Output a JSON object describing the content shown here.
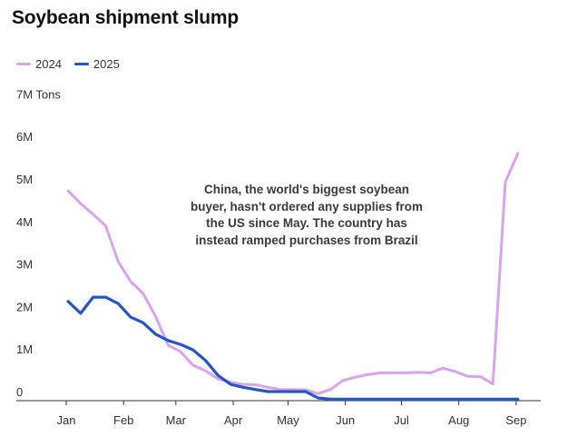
{
  "chart_data": {
    "type": "line",
    "title": "Soybean shipment slump",
    "ylabel": "Tons",
    "xlabel": "",
    "ylim": [
      0,
      7000000
    ],
    "y_ticks": [
      {
        "value": 0,
        "label": "0"
      },
      {
        "value": 1000000,
        "label": "1M"
      },
      {
        "value": 2000000,
        "label": "2M"
      },
      {
        "value": 3000000,
        "label": "3M"
      },
      {
        "value": 4000000,
        "label": "4M"
      },
      {
        "value": 5000000,
        "label": "5M"
      },
      {
        "value": 6000000,
        "label": "6M"
      },
      {
        "value": 7000000,
        "label": "7M Tons"
      }
    ],
    "x_ticks": [
      {
        "week": 0,
        "label": "Jan"
      },
      {
        "week": 4.5,
        "label": "Feb"
      },
      {
        "week": 8.6,
        "label": "Mar"
      },
      {
        "week": 13.1,
        "label": "Apr"
      },
      {
        "week": 17.4,
        "label": "May"
      },
      {
        "week": 21.9,
        "label": "Jun"
      },
      {
        "week": 26.3,
        "label": "Jul"
      },
      {
        "week": 30.8,
        "label": "Aug"
      },
      {
        "week": 35.3,
        "label": "Sep"
      }
    ],
    "xlim": [
      -2,
      37.5
    ],
    "grid": false,
    "legend_position": "top-left",
    "series": [
      {
        "name": "2024",
        "color": "#d9a3f0",
        "x_unit": "week",
        "values": [
          4.72,
          4.42,
          4.17,
          3.9,
          3.06,
          2.59,
          2.31,
          1.77,
          1.09,
          0.94,
          0.62,
          0.49,
          0.3,
          0.22,
          0.17,
          0.16,
          0.1,
          0.05,
          0.05,
          0.04,
          -0.05,
          0.05,
          0.26,
          0.34,
          0.4,
          0.44,
          0.44,
          0.44,
          0.45,
          0.44,
          0.55,
          0.47,
          0.36,
          0.35,
          0.18,
          4.93,
          5.6
        ]
      },
      {
        "name": "2025",
        "color": "#2456c9",
        "x_unit": "week",
        "values": [
          2.12,
          1.84,
          2.22,
          2.22,
          2.07,
          1.75,
          1.62,
          1.35,
          1.2,
          1.11,
          0.98,
          0.73,
          0.38,
          0.17,
          0.1,
          0.05,
          0.0,
          0.0,
          0.0,
          0.0,
          -0.15,
          -0.18,
          -0.18,
          -0.18,
          -0.18,
          -0.18,
          -0.18,
          -0.18,
          -0.18,
          -0.18,
          -0.18,
          -0.18,
          -0.18,
          -0.18,
          -0.18,
          -0.18,
          -0.18
        ]
      }
    ],
    "annotations": [
      {
        "text": "China, the world's biggest soybean buyer, hasn't ordered any supplies from the US since May. The country has instead ramped purchases from Brazil"
      }
    ]
  },
  "legend": [
    {
      "label": "2024",
      "color": "#d9a3f0"
    },
    {
      "label": "2025",
      "color": "#2456c9"
    }
  ],
  "annotation": "China, the world's biggest soybean buyer, hasn't ordered any supplies from the US since May. The country has instead ramped purchases from Brazil"
}
